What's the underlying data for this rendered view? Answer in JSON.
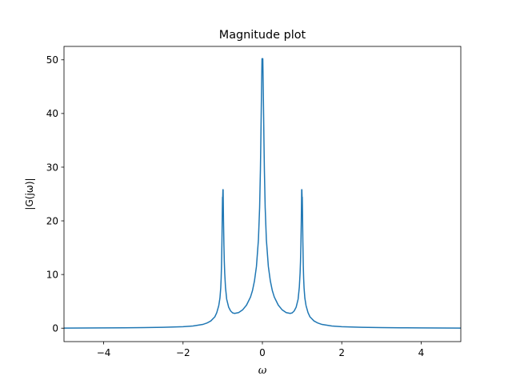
{
  "chart_data": {
    "type": "line",
    "title": "Magnitude plot",
    "xlabel": "ω",
    "ylabel": "|G(jω)|",
    "xlim": [
      -5,
      5
    ],
    "ylim": [
      -2.5,
      52.5
    ],
    "x_ticks": [
      -4,
      -2,
      0,
      2,
      4
    ],
    "x_tick_labels": [
      "−4",
      "−2",
      "0",
      "2",
      "4"
    ],
    "y_ticks": [
      0,
      10,
      20,
      30,
      40,
      50
    ],
    "y_tick_labels": [
      "0",
      "10",
      "20",
      "30",
      "40",
      "50"
    ],
    "grid": false,
    "series": [
      {
        "color": "#1f77b4",
        "x": [
          -5,
          -4.5,
          -4,
          -3.5,
          -3,
          -2.5,
          -2,
          -1.75,
          -1.5,
          -1.4,
          -1.3,
          -1.2,
          -1.15,
          -1.1,
          -1.07,
          -1.05,
          -1.04,
          -1.03,
          -1.02,
          -1.01,
          -1.005,
          -1.0,
          -0.995,
          -0.99,
          -0.98,
          -0.97,
          -0.96,
          -0.95,
          -0.93,
          -0.9,
          -0.85,
          -0.8,
          -0.75,
          -0.7,
          -0.6,
          -0.5,
          -0.4,
          -0.3,
          -0.25,
          -0.2,
          -0.15,
          -0.1,
          -0.07,
          -0.05,
          -0.04,
          -0.03,
          -0.02,
          -0.01,
          -0.005,
          0.0,
          0.005,
          0.01,
          0.02,
          0.03,
          0.04,
          0.05,
          0.07,
          0.1,
          0.15,
          0.2,
          0.25,
          0.3,
          0.4,
          0.5,
          0.6,
          0.7,
          0.75,
          0.8,
          0.85,
          0.9,
          0.93,
          0.95,
          0.96,
          0.97,
          0.98,
          0.99,
          0.995,
          1.0,
          1.005,
          1.01,
          1.02,
          1.03,
          1.04,
          1.05,
          1.07,
          1.1,
          1.15,
          1.2,
          1.3,
          1.4,
          1.5,
          1.75,
          2,
          2.5,
          3,
          3.5,
          4,
          4.5,
          5
        ],
        "y": [
          0.02,
          0.03,
          0.05,
          0.07,
          0.1,
          0.16,
          0.28,
          0.4,
          0.7,
          0.95,
          1.35,
          2.1,
          2.9,
          4.2,
          5.6,
          7.5,
          9.2,
          11.8,
          16.0,
          22.0,
          24.4,
          24.4,
          25.8,
          25.8,
          20.0,
          15.5,
          12.4,
          10.3,
          7.6,
          5.4,
          3.9,
          3.2,
          2.85,
          2.75,
          2.9,
          3.4,
          4.3,
          5.8,
          7.0,
          8.8,
          11.5,
          16.5,
          22.5,
          29.5,
          34.5,
          40.0,
          45.5,
          50.2,
          50.2,
          50.2,
          50.2,
          50.2,
          45.5,
          40.0,
          34.5,
          29.5,
          22.5,
          16.5,
          11.5,
          8.8,
          7.0,
          5.8,
          4.3,
          3.4,
          2.9,
          2.75,
          2.85,
          3.2,
          3.9,
          5.4,
          7.6,
          10.3,
          12.4,
          15.5,
          20.0,
          25.8,
          25.8,
          24.4,
          24.4,
          22.0,
          16.0,
          11.8,
          9.2,
          7.5,
          5.6,
          4.2,
          2.9,
          2.1,
          1.35,
          0.95,
          0.7,
          0.4,
          0.28,
          0.16,
          0.1,
          0.07,
          0.05,
          0.03,
          0.02
        ]
      }
    ]
  }
}
